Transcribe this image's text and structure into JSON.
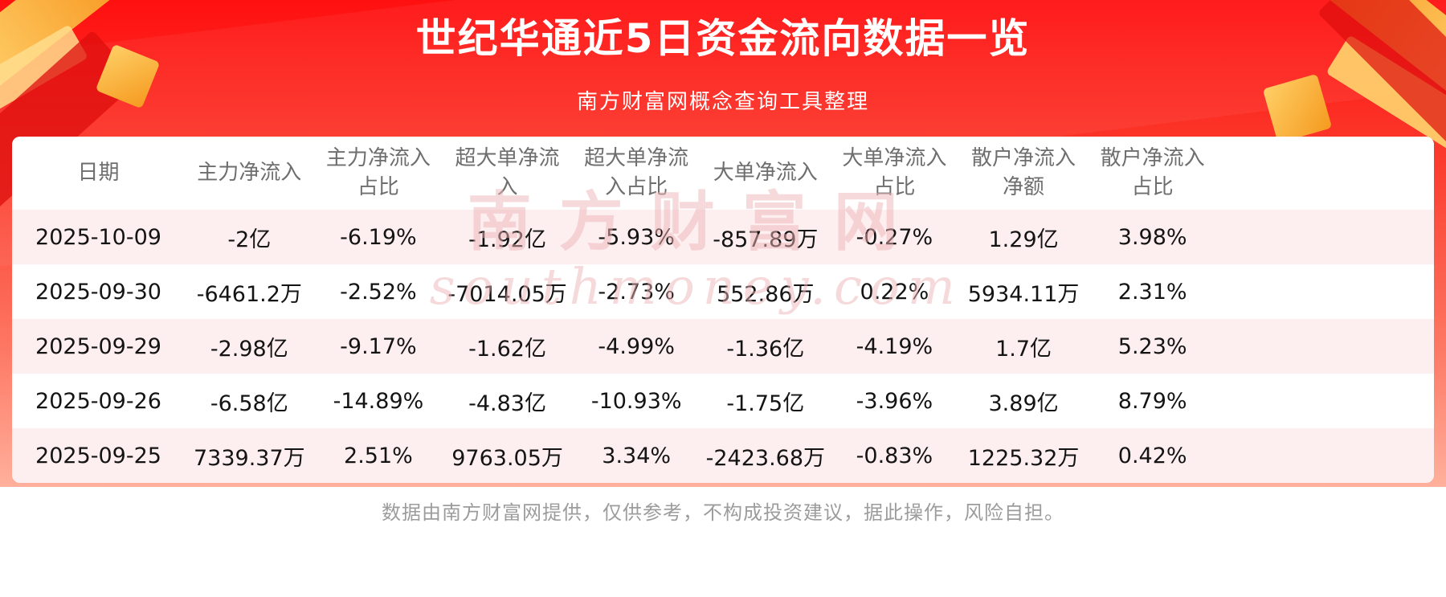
{
  "header": {
    "title": "世纪华通近5日资金流向数据一览",
    "subtitle": "南方财富网概念查询工具整理"
  },
  "watermark": {
    "line1": "南方财富网",
    "line2": "southmoney.com"
  },
  "footer": {
    "text": "数据由南方财富网提供，仅供参考，不构成投资建议，据此操作，风险自担。"
  },
  "colors": {
    "banner_red_top": "#ff1010",
    "banner_red_bottom": "#ffb09c",
    "gold_accent": "#f7941d",
    "row_alt_pink": "#fdeef0",
    "header_text_gray": "#6e6e6e",
    "body_text": "#141414",
    "footer_gray": "#9c9c9c"
  },
  "chart_data": {
    "type": "table",
    "title": "世纪华通近5日资金流向数据一览",
    "columns": [
      "日期",
      "主力净流入",
      "主力净流入占比",
      "超大单净流入",
      "超大单净流入占比",
      "大单净流入",
      "大单净流入占比",
      "散户净流入净额",
      "散户净流入占比"
    ],
    "rows": [
      [
        "2025-10-09",
        "-2亿",
        "-6.19%",
        "-1.92亿",
        "-5.93%",
        "-857.89万",
        "-0.27%",
        "1.29亿",
        "3.98%"
      ],
      [
        "2025-09-30",
        "-6461.2万",
        "-2.52%",
        "-7014.05万",
        "-2.73%",
        "552.86万",
        "0.22%",
        "5934.11万",
        "2.31%"
      ],
      [
        "2025-09-29",
        "-2.98亿",
        "-9.17%",
        "-1.62亿",
        "-4.99%",
        "-1.36亿",
        "-4.19%",
        "1.7亿",
        "5.23%"
      ],
      [
        "2025-09-26",
        "-6.58亿",
        "-14.89%",
        "-4.83亿",
        "-10.93%",
        "-1.75亿",
        "-3.96%",
        "3.89亿",
        "8.79%"
      ],
      [
        "2025-09-25",
        "7339.37万",
        "2.51%",
        "9763.05万",
        "3.34%",
        "-2423.68万",
        "-0.83%",
        "1225.32万",
        "0.42%"
      ]
    ]
  }
}
